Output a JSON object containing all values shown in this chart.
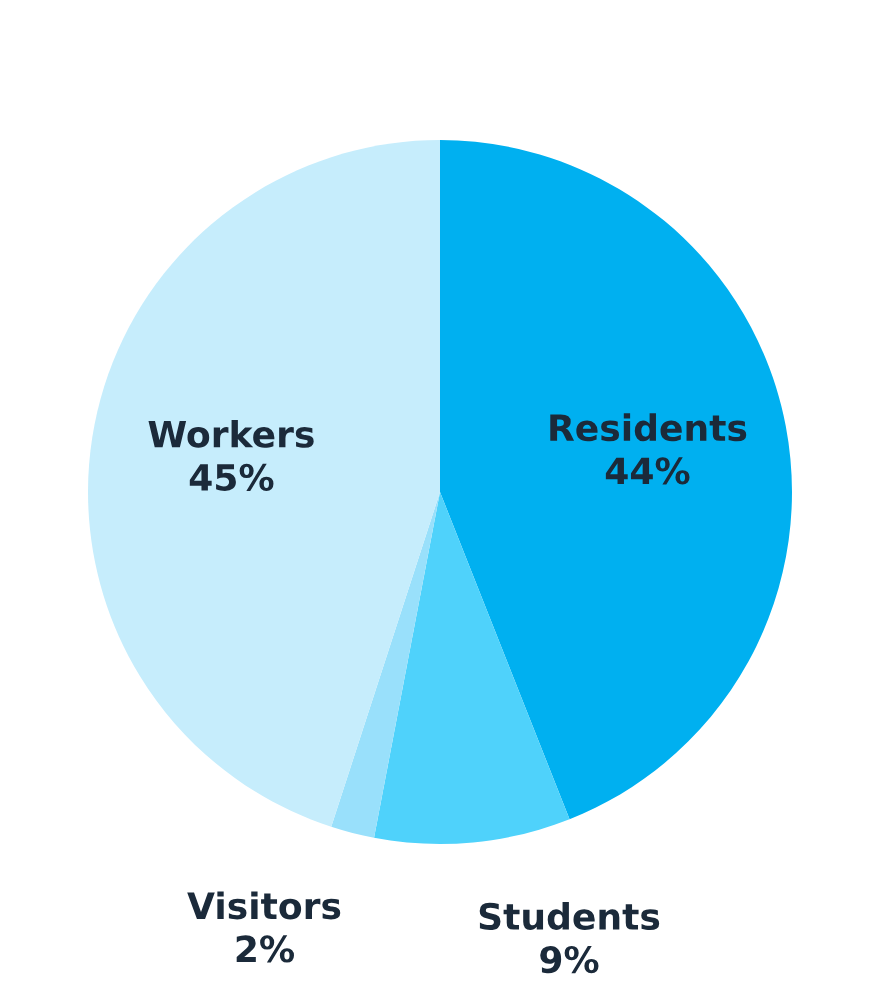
{
  "chart_data": {
    "type": "pie",
    "categories": [
      "Residents",
      "Students",
      "Visitors",
      "Workers"
    ],
    "values": [
      44,
      9,
      2,
      45
    ],
    "value_labels": [
      "44%",
      "9%",
      "2%",
      "45%"
    ],
    "colors": [
      "#00b0f0",
      "#4fd2fb",
      "#99e0fb",
      "#c6edfc"
    ]
  }
}
